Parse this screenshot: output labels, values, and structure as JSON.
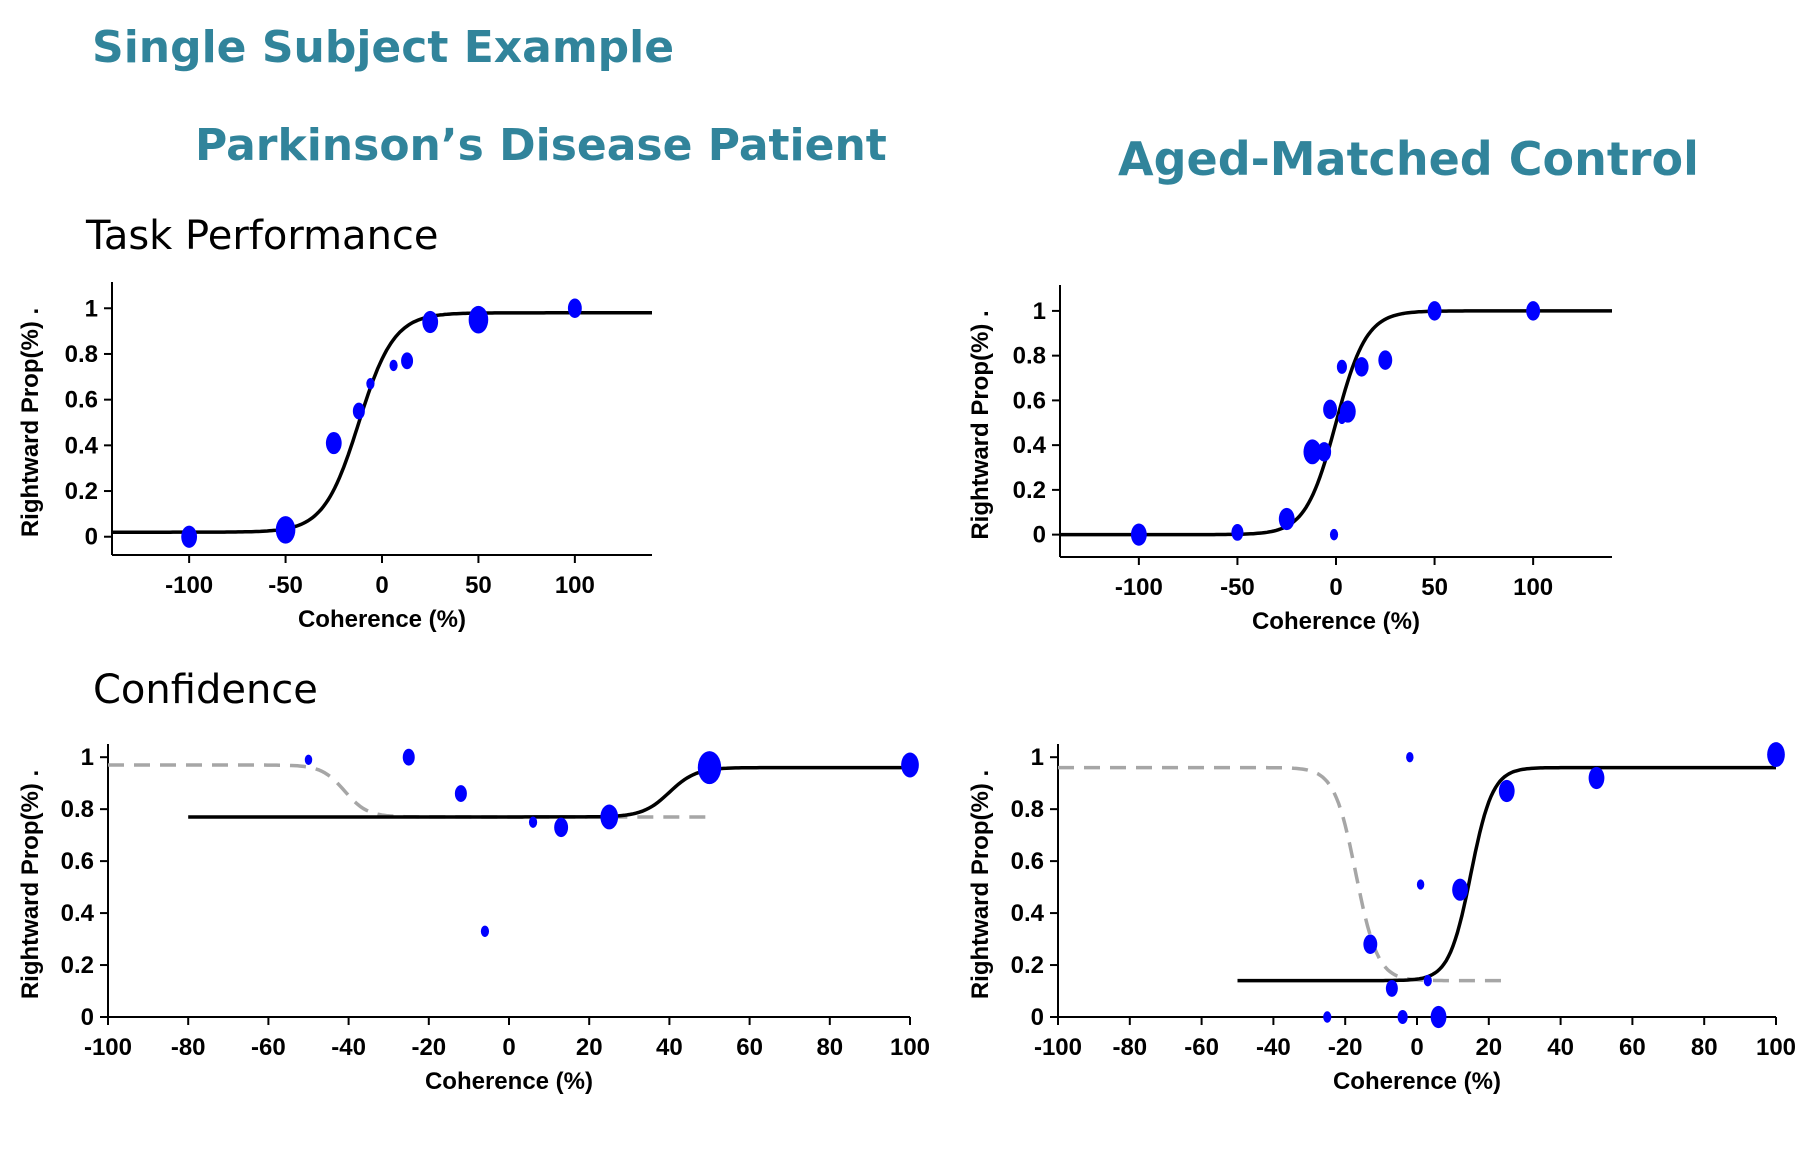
{
  "headings": {
    "main_title": "Single Subject Example",
    "left_title": "Parkinson’s Disease Patient",
    "right_title": "Aged-Matched Control",
    "row1_label": "Task Performance",
    "row2_label": "Confidence"
  },
  "colors": {
    "title": "#31849b",
    "points": "#0000ff",
    "fit": "#000000",
    "dashed": "#a6a6a6"
  },
  "chart_data": [
    {
      "type": "scatter",
      "panel": "pd-task-performance",
      "xlabel": "Coherence (%)",
      "ylabel": "Rightward Prop(%) .",
      "xlim": [
        -140,
        140
      ],
      "ylim": [
        -0.08,
        1.08
      ],
      "xticks": [
        -100,
        -50,
        0,
        50,
        100
      ],
      "yticks": [
        0,
        0.2,
        0.4,
        0.6,
        0.8,
        1
      ],
      "ytick_labels": [
        "0",
        "0.2",
        "0.4",
        "0.6",
        "0.8",
        "1"
      ],
      "grid": false,
      "points": [
        {
          "x": -100,
          "y": 0.0,
          "size": 3
        },
        {
          "x": -50,
          "y": 0.03,
          "size": 4
        },
        {
          "x": -25,
          "y": 0.41,
          "size": 3
        },
        {
          "x": -12,
          "y": 0.55,
          "size": 2
        },
        {
          "x": -6,
          "y": 0.67,
          "size": 1
        },
        {
          "x": 6,
          "y": 0.75,
          "size": 1
        },
        {
          "x": 13,
          "y": 0.77,
          "size": 2
        },
        {
          "x": 25,
          "y": 0.94,
          "size": 3
        },
        {
          "x": 50,
          "y": 0.95,
          "size": 4
        },
        {
          "x": 100,
          "y": 1.0,
          "size": 2.5
        }
      ],
      "fit": {
        "x_from": -140,
        "x_to": 140,
        "lower": 0.02,
        "upper": 0.98,
        "midpoint": -12,
        "slope": 0.11
      },
      "reference": null
    },
    {
      "type": "scatter",
      "panel": "control-task-performance",
      "xlabel": "Coherence (%)",
      "ylabel": "Rightward Prop(%) .",
      "xlim": [
        -140,
        140
      ],
      "ylim": [
        -0.1,
        1.08
      ],
      "xticks": [
        -100,
        -50,
        0,
        50,
        100
      ],
      "yticks": [
        0,
        0.2,
        0.4,
        0.6,
        0.8,
        1
      ],
      "ytick_labels": [
        "0",
        "0.2",
        "0.4",
        "0.6",
        "0.8",
        "1"
      ],
      "grid": false,
      "points": [
        {
          "x": -100,
          "y": 0.0,
          "size": 3
        },
        {
          "x": -50,
          "y": 0.01,
          "size": 2
        },
        {
          "x": -25,
          "y": 0.07,
          "size": 3
        },
        {
          "x": -12,
          "y": 0.37,
          "size": 3.5
        },
        {
          "x": -6,
          "y": 0.37,
          "size": 2.5
        },
        {
          "x": -3,
          "y": 0.56,
          "size": 2.5
        },
        {
          "x": 3,
          "y": 0.52,
          "size": 1
        },
        {
          "x": 3,
          "y": 0.75,
          "size": 1.5
        },
        {
          "x": 6,
          "y": 0.55,
          "size": 3
        },
        {
          "x": 13,
          "y": 0.75,
          "size": 2.5
        },
        {
          "x": 25,
          "y": 0.78,
          "size": 2.5
        },
        {
          "x": -1,
          "y": 0.0,
          "size": 1
        },
        {
          "x": 50,
          "y": 1.0,
          "size": 2.5
        },
        {
          "x": 100,
          "y": 1.0,
          "size": 2.5
        }
      ],
      "fit": {
        "x_from": -140,
        "x_to": 140,
        "lower": 0.0,
        "upper": 1.0,
        "midpoint": 0,
        "slope": 0.13
      },
      "reference": null
    },
    {
      "type": "scatter",
      "panel": "pd-confidence",
      "xlabel": "Coherence (%)",
      "ylabel": "Rightward Prop(%) .",
      "xlim": [
        -100,
        100
      ],
      "ylim": [
        0,
        1.02
      ],
      "xticks": [
        -100,
        -80,
        -60,
        -40,
        -20,
        0,
        20,
        40,
        60,
        80,
        100
      ],
      "yticks": [
        0,
        0.2,
        0.4,
        0.6,
        0.8,
        1
      ],
      "ytick_labels": [
        "0",
        "0.2",
        "0.4",
        "0.6",
        "0.8",
        "1"
      ],
      "grid": false,
      "points": [
        {
          "x": -50,
          "y": 0.99,
          "size": 0.8
        },
        {
          "x": -25,
          "y": 1.0,
          "size": 2
        },
        {
          "x": -12,
          "y": 0.86,
          "size": 2
        },
        {
          "x": -6,
          "y": 0.33,
          "size": 1
        },
        {
          "x": 6,
          "y": 0.75,
          "size": 1
        },
        {
          "x": 13,
          "y": 0.73,
          "size": 2.5
        },
        {
          "x": 25,
          "y": 0.77,
          "size": 3.5
        },
        {
          "x": 50,
          "y": 0.96,
          "size": 5
        },
        {
          "x": 100,
          "y": 0.97,
          "size": 3.5
        }
      ],
      "fit": {
        "x_from": -80,
        "x_to": 100,
        "lower": 0.77,
        "upper": 0.96,
        "midpoint": 40,
        "slope": 0.3
      },
      "reference": {
        "x_from": -100,
        "x_to": 50,
        "lower": 0.77,
        "upper": 0.97,
        "midpoint": -41,
        "slope": -0.35
      }
    },
    {
      "type": "scatter",
      "panel": "control-confidence",
      "xlabel": "Coherence (%)",
      "ylabel": "Rightward Prop(%) .",
      "xlim": [
        -100,
        100
      ],
      "ylim": [
        0,
        1.02
      ],
      "xticks": [
        -100,
        -80,
        -60,
        -40,
        -20,
        0,
        20,
        40,
        60,
        80,
        100
      ],
      "yticks": [
        0,
        0.2,
        0.4,
        0.6,
        0.8,
        1
      ],
      "ytick_labels": [
        "0",
        "0.2",
        "0.4",
        "0.6",
        "0.8",
        "1"
      ],
      "grid": false,
      "points": [
        {
          "x": -25,
          "y": 0.0,
          "size": 1
        },
        {
          "x": -13,
          "y": 0.28,
          "size": 2.5
        },
        {
          "x": -7,
          "y": 0.11,
          "size": 2
        },
        {
          "x": -4,
          "y": 0.0,
          "size": 1.5
        },
        {
          "x": -2,
          "y": 1.0,
          "size": 0.8
        },
        {
          "x": 1,
          "y": 0.51,
          "size": 0.8
        },
        {
          "x": 3,
          "y": 0.14,
          "size": 1
        },
        {
          "x": 6,
          "y": 0.0,
          "size": 3
        },
        {
          "x": 12,
          "y": 0.49,
          "size": 3
        },
        {
          "x": 25,
          "y": 0.87,
          "size": 3
        },
        {
          "x": 50,
          "y": 0.92,
          "size": 3
        },
        {
          "x": 100,
          "y": 1.01,
          "size": 3.5
        }
      ],
      "fit": {
        "x_from": -50,
        "x_to": 100,
        "lower": 0.14,
        "upper": 0.96,
        "midpoint": 15,
        "slope": 0.33
      },
      "reference": {
        "x_from": -100,
        "x_to": 25,
        "lower": 0.14,
        "upper": 0.96,
        "midpoint": -17,
        "slope": -0.33
      }
    }
  ]
}
